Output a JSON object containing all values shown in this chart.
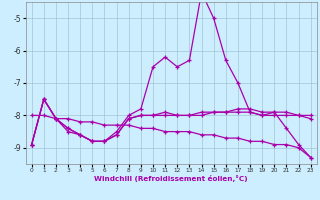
{
  "xlabel": "Windchill (Refroidissement éolien,°C)",
  "background_color": "#cceeff",
  "line_color": "#aa00aa",
  "x": [
    0,
    1,
    2,
    3,
    4,
    5,
    6,
    7,
    8,
    9,
    10,
    11,
    12,
    13,
    14,
    15,
    16,
    17,
    18,
    19,
    20,
    21,
    22,
    23
  ],
  "series_main": [
    -8.9,
    -7.5,
    -8.1,
    -8.5,
    -8.6,
    -8.8,
    -8.8,
    -8.5,
    -8.0,
    -7.8,
    -6.5,
    -6.2,
    -6.5,
    -6.3,
    -4.2,
    -5.0,
    -6.3,
    -7.0,
    -7.9,
    -8.0,
    -7.9,
    -8.4,
    -8.9,
    -9.3
  ],
  "series_flat1": [
    -8.9,
    -7.5,
    -8.1,
    -8.4,
    -8.6,
    -8.8,
    -8.8,
    -8.6,
    -8.1,
    -8.0,
    -8.0,
    -7.9,
    -8.0,
    -8.0,
    -8.0,
    -7.9,
    -7.9,
    -7.9,
    -7.9,
    -8.0,
    -8.0,
    -8.0,
    -8.0,
    -8.0
  ],
  "series_flat2": [
    -8.9,
    -7.5,
    -8.1,
    -8.4,
    -8.6,
    -8.8,
    -8.8,
    -8.6,
    -8.1,
    -8.0,
    -8.0,
    -8.0,
    -8.0,
    -8.0,
    -7.9,
    -7.9,
    -7.9,
    -7.8,
    -7.8,
    -7.9,
    -7.9,
    -7.9,
    -8.0,
    -8.1
  ],
  "series_linear": [
    -8.0,
    -8.0,
    -8.1,
    -8.1,
    -8.2,
    -8.2,
    -8.3,
    -8.3,
    -8.3,
    -8.4,
    -8.4,
    -8.5,
    -8.5,
    -8.5,
    -8.6,
    -8.6,
    -8.7,
    -8.7,
    -8.8,
    -8.8,
    -8.9,
    -8.9,
    -9.0,
    -9.3
  ],
  "ylim": [
    -9.5,
    -4.5
  ],
  "yticks": [
    -9,
    -8,
    -7,
    -6,
    -5
  ],
  "xlim": [
    -0.5,
    23.5
  ],
  "xticks": [
    0,
    1,
    2,
    3,
    4,
    5,
    6,
    7,
    8,
    9,
    10,
    11,
    12,
    13,
    14,
    15,
    16,
    17,
    18,
    19,
    20,
    21,
    22,
    23
  ]
}
